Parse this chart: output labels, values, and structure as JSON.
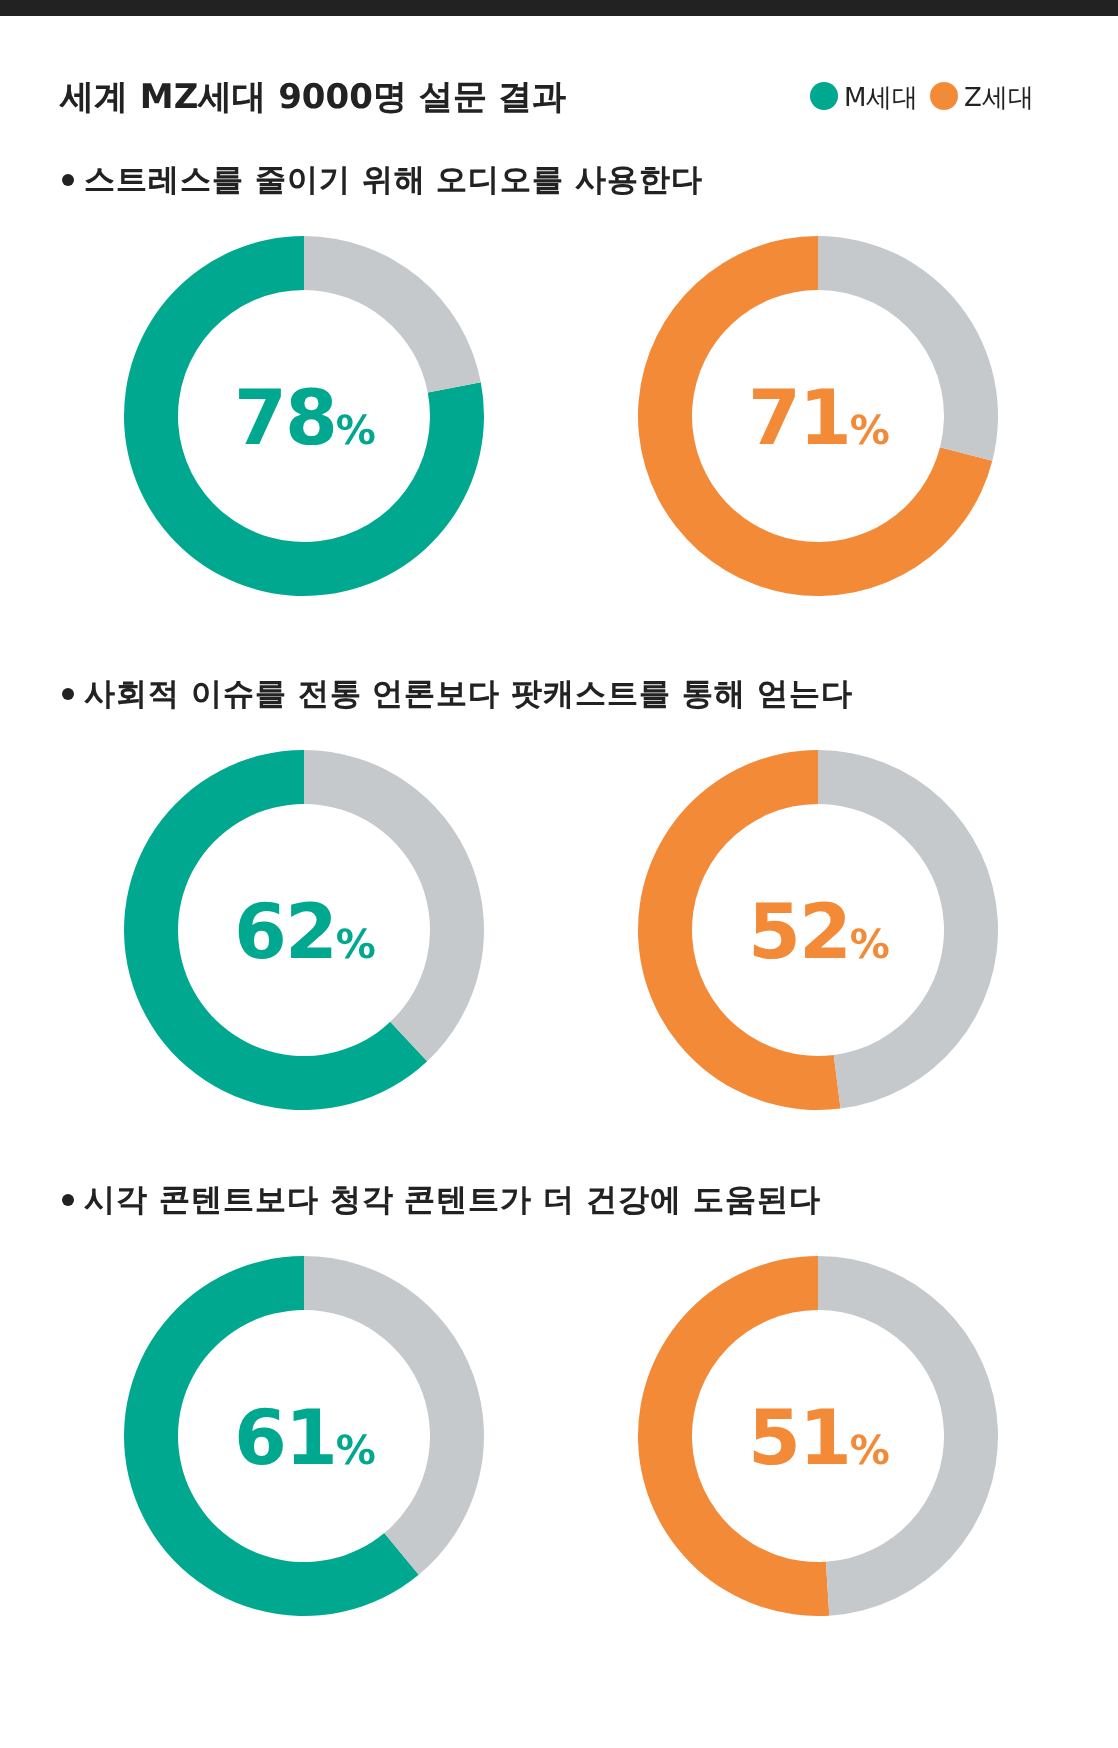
{
  "chart_data": [
    {
      "type": "donut",
      "title": "세계 MZ세대 9000명 설문 결과",
      "subtitle": "스트레스를 줄이기 위해 오디오를 사용한다",
      "categories": [
        "M세대",
        null
      ],
      "values": [
        78,
        22
      ],
      "colors": [
        "#00a88f",
        "#c6c9cb"
      ],
      "value_labels": [
        "78%",
        null
      ],
      "legend": "top right"
    },
    {
      "type": "donut",
      "categories": [
        "Z세대",
        null
      ],
      "values": [
        71,
        29
      ],
      "colors": [
        "#f38a38",
        "#c6c9cb"
      ],
      "value_labels": [
        "71%",
        null
      ],
      "legend": "top right"
    },
    {
      "type": "donut",
      "subtitle": "사회적 이슈를 전통 언론보다 팟캐스트를 통해 얻는다",
      "categories": [
        null,
        null
      ],
      "values": [
        62,
        38
      ],
      "colors": [
        "#00a88f",
        "#c6c9cb"
      ],
      "value_labels": [
        "62%",
        null
      ]
    },
    {
      "type": "donut",
      "categories": [
        null,
        null
      ],
      "values": [
        52,
        48
      ],
      "colors": [
        "#f38a38",
        "#c6c9cb"
      ],
      "value_labels": [
        "52%",
        null
      ]
    },
    {
      "type": "donut",
      "subtitle": "시각 콘텐트보다 청각 콘텐트가 더 건강에 도움된다",
      "categories": [
        null,
        null
      ],
      "values": [
        61,
        39
      ],
      "colors": [
        "#00a88f",
        "#c6c9cb"
      ],
      "value_labels": [
        "61%",
        null
      ]
    },
    {
      "type": "donut",
      "categories": [
        null,
        null
      ],
      "values": [
        51,
        49
      ],
      "colors": [
        "#f38a38",
        "#c6c9cb"
      ],
      "value_labels": [
        "51%",
        null
      ]
    }
  ]
}
